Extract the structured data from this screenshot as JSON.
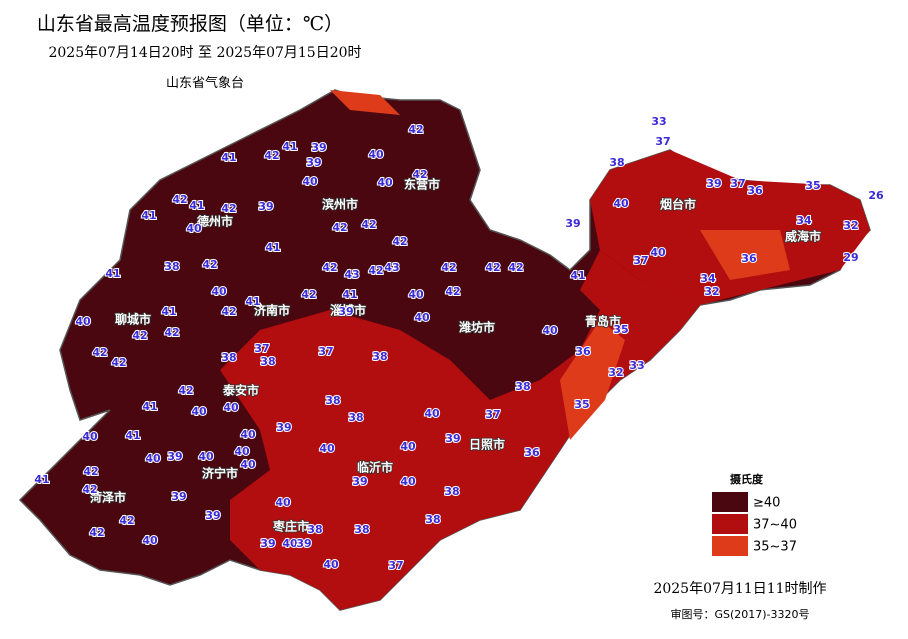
{
  "header": {
    "title": "山东省最高温度预报图（单位：℃）",
    "subtitle": "2025年07月14日20时  至  2025年07月15日20时",
    "agency": "山东省气象台"
  },
  "cities": [
    "德州市",
    "滨州市",
    "东营市",
    "烟台市",
    "威海市",
    "青岛市",
    "潍坊市",
    "日照市",
    "临沂市",
    "枣庄市",
    "济宁市",
    "菏泽市",
    "聊城市",
    "泰安市",
    "济南市",
    "淄博市"
  ],
  "temperatures": [
    33,
    37,
    38,
    39,
    37,
    36,
    35,
    26,
    34,
    32,
    29,
    36,
    37,
    40,
    34,
    32,
    40,
    39,
    41,
    40,
    35,
    36,
    33,
    32,
    35,
    38,
    37,
    36,
    42,
    40,
    39,
    41,
    42,
    40,
    42,
    39,
    40,
    42,
    39,
    41,
    40,
    41,
    42,
    41,
    41,
    38,
    42,
    41,
    42,
    42,
    42,
    43,
    42,
    43,
    42,
    42,
    42,
    42,
    42,
    40,
    42,
    41,
    41,
    40,
    42,
    39,
    40,
    40,
    41,
    42,
    42,
    42,
    42,
    37,
    38,
    38,
    37,
    38,
    42,
    41,
    40,
    40,
    38,
    38,
    40,
    39,
    40,
    41,
    40,
    40,
    40,
    39,
    40,
    40,
    39,
    40,
    40,
    41,
    42,
    39,
    40,
    38,
    39,
    42,
    40,
    42,
    42,
    40,
    39,
    38,
    38,
    38,
    39,
    40,
    39,
    40,
    37
  ],
  "legend": {
    "title": "摄氏度",
    "items": [
      {
        "label": "≥40",
        "color": "#4a0710"
      },
      {
        "label": "37~40",
        "color": "#b20d0f"
      },
      {
        "label": "35~37",
        "color": "#de3b1b"
      }
    ]
  },
  "footer": {
    "made": "2025年07月11日11时制作",
    "approval": "审图号：GS(2017)-3320号"
  }
}
